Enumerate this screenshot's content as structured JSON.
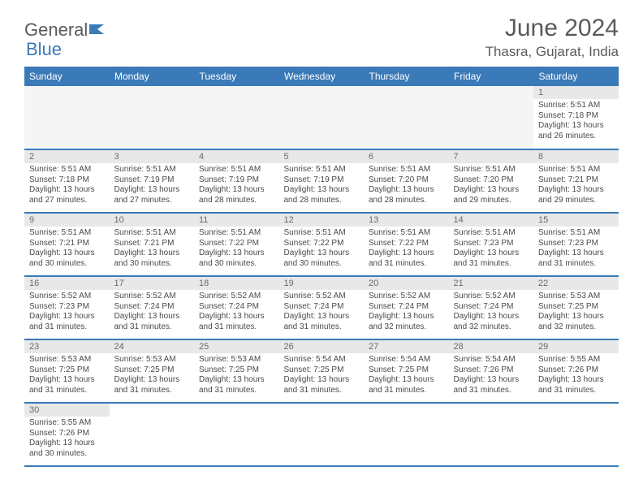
{
  "logo": {
    "text1": "General",
    "text2": "Blue"
  },
  "title": "June 2024",
  "location": "Thasra, Gujarat, India",
  "colors": {
    "header_bg": "#3b7ab8",
    "header_text": "#ffffff",
    "daynum_bg": "#e8e8e8",
    "text": "#4a4a4a",
    "border": "#3b7ab8"
  },
  "weekdays": [
    "Sunday",
    "Monday",
    "Tuesday",
    "Wednesday",
    "Thursday",
    "Friday",
    "Saturday"
  ],
  "grid": [
    [
      {
        "blank": true
      },
      {
        "blank": true
      },
      {
        "blank": true
      },
      {
        "blank": true
      },
      {
        "blank": true
      },
      {
        "blank": true
      },
      {
        "day": "1",
        "sunrise": "5:51 AM",
        "sunset": "7:18 PM",
        "daylight": "13 hours and 26 minutes."
      }
    ],
    [
      {
        "day": "2",
        "sunrise": "5:51 AM",
        "sunset": "7:18 PM",
        "daylight": "13 hours and 27 minutes."
      },
      {
        "day": "3",
        "sunrise": "5:51 AM",
        "sunset": "7:19 PM",
        "daylight": "13 hours and 27 minutes."
      },
      {
        "day": "4",
        "sunrise": "5:51 AM",
        "sunset": "7:19 PM",
        "daylight": "13 hours and 28 minutes."
      },
      {
        "day": "5",
        "sunrise": "5:51 AM",
        "sunset": "7:19 PM",
        "daylight": "13 hours and 28 minutes."
      },
      {
        "day": "6",
        "sunrise": "5:51 AM",
        "sunset": "7:20 PM",
        "daylight": "13 hours and 28 minutes."
      },
      {
        "day": "7",
        "sunrise": "5:51 AM",
        "sunset": "7:20 PM",
        "daylight": "13 hours and 29 minutes."
      },
      {
        "day": "8",
        "sunrise": "5:51 AM",
        "sunset": "7:21 PM",
        "daylight": "13 hours and 29 minutes."
      }
    ],
    [
      {
        "day": "9",
        "sunrise": "5:51 AM",
        "sunset": "7:21 PM",
        "daylight": "13 hours and 30 minutes."
      },
      {
        "day": "10",
        "sunrise": "5:51 AM",
        "sunset": "7:21 PM",
        "daylight": "13 hours and 30 minutes."
      },
      {
        "day": "11",
        "sunrise": "5:51 AM",
        "sunset": "7:22 PM",
        "daylight": "13 hours and 30 minutes."
      },
      {
        "day": "12",
        "sunrise": "5:51 AM",
        "sunset": "7:22 PM",
        "daylight": "13 hours and 30 minutes."
      },
      {
        "day": "13",
        "sunrise": "5:51 AM",
        "sunset": "7:22 PM",
        "daylight": "13 hours and 31 minutes."
      },
      {
        "day": "14",
        "sunrise": "5:51 AM",
        "sunset": "7:23 PM",
        "daylight": "13 hours and 31 minutes."
      },
      {
        "day": "15",
        "sunrise": "5:51 AM",
        "sunset": "7:23 PM",
        "daylight": "13 hours and 31 minutes."
      }
    ],
    [
      {
        "day": "16",
        "sunrise": "5:52 AM",
        "sunset": "7:23 PM",
        "daylight": "13 hours and 31 minutes."
      },
      {
        "day": "17",
        "sunrise": "5:52 AM",
        "sunset": "7:24 PM",
        "daylight": "13 hours and 31 minutes."
      },
      {
        "day": "18",
        "sunrise": "5:52 AM",
        "sunset": "7:24 PM",
        "daylight": "13 hours and 31 minutes."
      },
      {
        "day": "19",
        "sunrise": "5:52 AM",
        "sunset": "7:24 PM",
        "daylight": "13 hours and 31 minutes."
      },
      {
        "day": "20",
        "sunrise": "5:52 AM",
        "sunset": "7:24 PM",
        "daylight": "13 hours and 32 minutes."
      },
      {
        "day": "21",
        "sunrise": "5:52 AM",
        "sunset": "7:24 PM",
        "daylight": "13 hours and 32 minutes."
      },
      {
        "day": "22",
        "sunrise": "5:53 AM",
        "sunset": "7:25 PM",
        "daylight": "13 hours and 32 minutes."
      }
    ],
    [
      {
        "day": "23",
        "sunrise": "5:53 AM",
        "sunset": "7:25 PM",
        "daylight": "13 hours and 31 minutes."
      },
      {
        "day": "24",
        "sunrise": "5:53 AM",
        "sunset": "7:25 PM",
        "daylight": "13 hours and 31 minutes."
      },
      {
        "day": "25",
        "sunrise": "5:53 AM",
        "sunset": "7:25 PM",
        "daylight": "13 hours and 31 minutes."
      },
      {
        "day": "26",
        "sunrise": "5:54 AM",
        "sunset": "7:25 PM",
        "daylight": "13 hours and 31 minutes."
      },
      {
        "day": "27",
        "sunrise": "5:54 AM",
        "sunset": "7:25 PM",
        "daylight": "13 hours and 31 minutes."
      },
      {
        "day": "28",
        "sunrise": "5:54 AM",
        "sunset": "7:26 PM",
        "daylight": "13 hours and 31 minutes."
      },
      {
        "day": "29",
        "sunrise": "5:55 AM",
        "sunset": "7:26 PM",
        "daylight": "13 hours and 31 minutes."
      }
    ],
    [
      {
        "day": "30",
        "sunrise": "5:55 AM",
        "sunset": "7:26 PM",
        "daylight": "13 hours and 30 minutes."
      },
      {
        "blank": true,
        "tail": true
      },
      {
        "blank": true,
        "tail": true
      },
      {
        "blank": true,
        "tail": true
      },
      {
        "blank": true,
        "tail": true
      },
      {
        "blank": true,
        "tail": true
      },
      {
        "blank": true,
        "tail": true
      }
    ]
  ],
  "labels": {
    "sunrise": "Sunrise:",
    "sunset": "Sunset:",
    "daylight": "Daylight:"
  }
}
